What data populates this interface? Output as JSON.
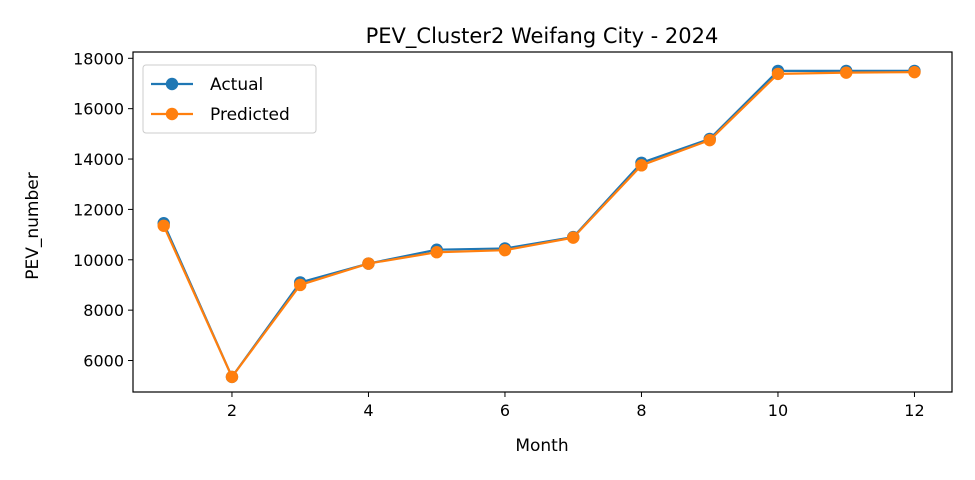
{
  "chart_data": {
    "type": "line",
    "title": "PEV_Cluster2 Weifang City - 2024",
    "xlabel": "Month",
    "ylabel": "PEV_number",
    "x": [
      1,
      2,
      3,
      4,
      5,
      6,
      7,
      8,
      9,
      10,
      11,
      12
    ],
    "xlim": [
      0.55,
      12.55
    ],
    "ylim": [
      4750,
      18250
    ],
    "xticks": [
      2,
      4,
      6,
      8,
      10,
      12
    ],
    "yticks": [
      6000,
      8000,
      10000,
      12000,
      14000,
      16000,
      18000
    ],
    "grid": false,
    "legend_position": "top-left",
    "series": [
      {
        "name": "Actual",
        "color": "#1f77b4",
        "marker": "circle",
        "values": [
          11450,
          5350,
          9100,
          9850,
          10400,
          10450,
          10900,
          13850,
          14800,
          17500,
          17500,
          17500
        ]
      },
      {
        "name": "Predicted",
        "color": "#ff7f0e",
        "marker": "circle",
        "values": [
          11350,
          5350,
          9000,
          9850,
          10300,
          10380,
          10880,
          13750,
          14750,
          17380,
          17430,
          17450
        ]
      }
    ]
  }
}
